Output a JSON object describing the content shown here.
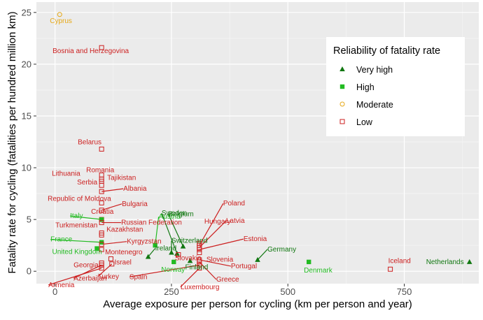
{
  "chart_data": {
    "type": "scatter",
    "xlabel": "Average exposure per person for cycling (km per person and year)",
    "ylabel": "Fatality rate for cycling (fatalities per hundred million km)",
    "xlim": [
      -40,
      910
    ],
    "ylim": [
      -1.2,
      26
    ],
    "x_ticks": [
      0,
      250,
      500,
      750
    ],
    "y_ticks": [
      0,
      5,
      10,
      15,
      20,
      25
    ],
    "grid": true,
    "legend": {
      "title": "Reliability of fatality rate",
      "placement": "top-right",
      "entries": [
        {
          "name": "Very high",
          "marker": "triangle",
          "color": "#117711"
        },
        {
          "name": "High",
          "marker": "square-filled",
          "color": "#22bb22"
        },
        {
          "name": "Moderate",
          "marker": "circle-open",
          "color": "#e6a817"
        },
        {
          "name": "Low",
          "marker": "square-open",
          "color": "#cc1f1f"
        }
      ]
    },
    "colors": {
      "very_high": "#117711",
      "high": "#22bb22",
      "moderate": "#e6a817",
      "low": "#cc1f1f"
    },
    "points": [
      {
        "label": "Cyprus",
        "x": 10,
        "y": 24.8,
        "rel": "moderate"
      },
      {
        "label": "Bosnia and Herzegovina",
        "x": 100,
        "y": 21.6,
        "rel": "low"
      },
      {
        "label": "Belarus",
        "x": 100,
        "y": 11.8,
        "rel": "low"
      },
      {
        "label": "Romania",
        "x": 100,
        "y": 9.3,
        "rel": "low"
      },
      {
        "label": "Tajikistan",
        "x": 100,
        "y": 8.7,
        "rel": "low"
      },
      {
        "label": "Lithuania",
        "x": 100,
        "y": 8.9,
        "rel": "low"
      },
      {
        "label": "Serbia",
        "x": 100,
        "y": 8.3,
        "rel": "low"
      },
      {
        "label": "Albania",
        "x": 100,
        "y": 7.7,
        "rel": "low"
      },
      {
        "label": "Republic of Moldova",
        "x": 100,
        "y": 6.6,
        "rel": "low"
      },
      {
        "label": "Bulgaria",
        "x": 100,
        "y": 5.9,
        "rel": "low"
      },
      {
        "label": "Croatia",
        "x": 100,
        "y": 5.0,
        "rel": "low"
      },
      {
        "label": "Italy",
        "x": 100,
        "y": 5.0,
        "rel": "high"
      },
      {
        "label": "Russian Federation",
        "x": 100,
        "y": 4.7,
        "rel": "low"
      },
      {
        "label": "Turkmenistan",
        "x": 100,
        "y": 3.7,
        "rel": "low"
      },
      {
        "label": "Kazakhstan",
        "x": 100,
        "y": 3.5,
        "rel": "low"
      },
      {
        "label": "France",
        "x": 100,
        "y": 2.8,
        "rel": "high"
      },
      {
        "label": "Kyrgyzstan",
        "x": 100,
        "y": 2.6,
        "rel": "low"
      },
      {
        "label": "United Kingdom",
        "x": 90,
        "y": 2.2,
        "rel": "high"
      },
      {
        "label": "Montenegro",
        "x": 100,
        "y": 2.1,
        "rel": "low"
      },
      {
        "label": "Georgia",
        "x": 100,
        "y": 0.8,
        "rel": "low"
      },
      {
        "label": "Israel",
        "x": 120,
        "y": 1.2,
        "rel": "low"
      },
      {
        "label": "Armenia",
        "x": 100,
        "y": 0.3,
        "rel": "low"
      },
      {
        "label": "Azerbaijan",
        "x": 100,
        "y": 0.6,
        "rel": "low"
      },
      {
        "label": "Turkey",
        "x": 122,
        "y": 0.7,
        "rel": "low"
      },
      {
        "label": "Ireland",
        "x": 200,
        "y": 1.4,
        "rel": "very_high"
      },
      {
        "label": "Austria",
        "x": 215,
        "y": 2.5,
        "rel": "high"
      },
      {
        "label": "Switzerland",
        "x": 250,
        "y": 1.8,
        "rel": "very_high"
      },
      {
        "label": "Norway",
        "x": 255,
        "y": 0.9,
        "rel": "high"
      },
      {
        "label": "Sweden",
        "x": 262,
        "y": 1.7,
        "rel": "very_high"
      },
      {
        "label": "Slovakia",
        "x": 265,
        "y": 1.6,
        "rel": "low"
      },
      {
        "label": "Belgium",
        "x": 275,
        "y": 2.4,
        "rel": "very_high"
      },
      {
        "label": "Finland",
        "x": 290,
        "y": 1.0,
        "rel": "very_high"
      },
      {
        "label": "Poland",
        "x": 310,
        "y": 2.5,
        "rel": "low"
      },
      {
        "label": "Hungary",
        "x": 310,
        "y": 2.7,
        "rel": "low"
      },
      {
        "label": "Latvia",
        "x": 310,
        "y": 2.3,
        "rel": "low"
      },
      {
        "label": "Estonia",
        "x": 310,
        "y": 2.1,
        "rel": "low"
      },
      {
        "label": "Slovenia",
        "x": 310,
        "y": 1.8,
        "rel": "low"
      },
      {
        "label": "Portugal",
        "x": 310,
        "y": 1.1,
        "rel": "low"
      },
      {
        "label": "Spain",
        "x": 310,
        "y": 0.6,
        "rel": "low"
      },
      {
        "label": "Luxembourg",
        "x": 310,
        "y": 0.3,
        "rel": "low"
      },
      {
        "label": "Greece",
        "x": 310,
        "y": 0.9,
        "rel": "low"
      },
      {
        "label": "Germany",
        "x": 435,
        "y": 1.1,
        "rel": "very_high"
      },
      {
        "label": "Denmark",
        "x": 545,
        "y": 0.9,
        "rel": "high"
      },
      {
        "label": "Iceland",
        "x": 720,
        "y": 0.2,
        "rel": "low"
      },
      {
        "label": "Netherlands",
        "x": 890,
        "y": 0.9,
        "rel": "very_high"
      }
    ]
  }
}
